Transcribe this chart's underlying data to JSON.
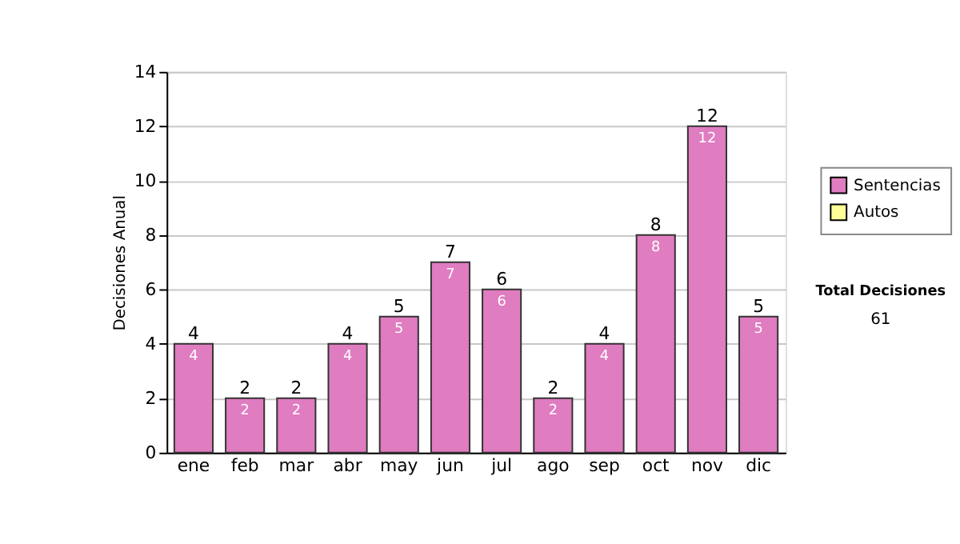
{
  "chart_data": {
    "type": "bar",
    "ylabel": "Decisiones Anual",
    "categories": [
      "ene",
      "feb",
      "mar",
      "abr",
      "may",
      "jun",
      "jul",
      "ago",
      "sep",
      "oct",
      "nov",
      "dic"
    ],
    "series": [
      {
        "name": "Sentencias",
        "color": "#e07cc0",
        "values": [
          4,
          2,
          2,
          4,
          5,
          7,
          6,
          2,
          4,
          8,
          12,
          5
        ],
        "value_labels": [
          "4",
          "2",
          "2",
          "4",
          "5",
          "7",
          "6",
          "2",
          "4",
          "8",
          "12",
          "5"
        ]
      },
      {
        "name": "Autos",
        "color": "#ffff99",
        "values": [
          0,
          0,
          0,
          0,
          0,
          0,
          0,
          0,
          0,
          0,
          0,
          0
        ]
      }
    ],
    "stacked": true,
    "totals": [
      "4",
      "2",
      "2",
      "4",
      "5",
      "7",
      "6",
      "2",
      "4",
      "8",
      "12",
      "5"
    ],
    "ylim": [
      0,
      14
    ],
    "yticks": [
      0,
      2,
      4,
      6,
      8,
      10,
      12,
      14
    ],
    "grid": "y",
    "legend": "right",
    "annotations": [
      "Total Decisiones",
      "61"
    ]
  }
}
